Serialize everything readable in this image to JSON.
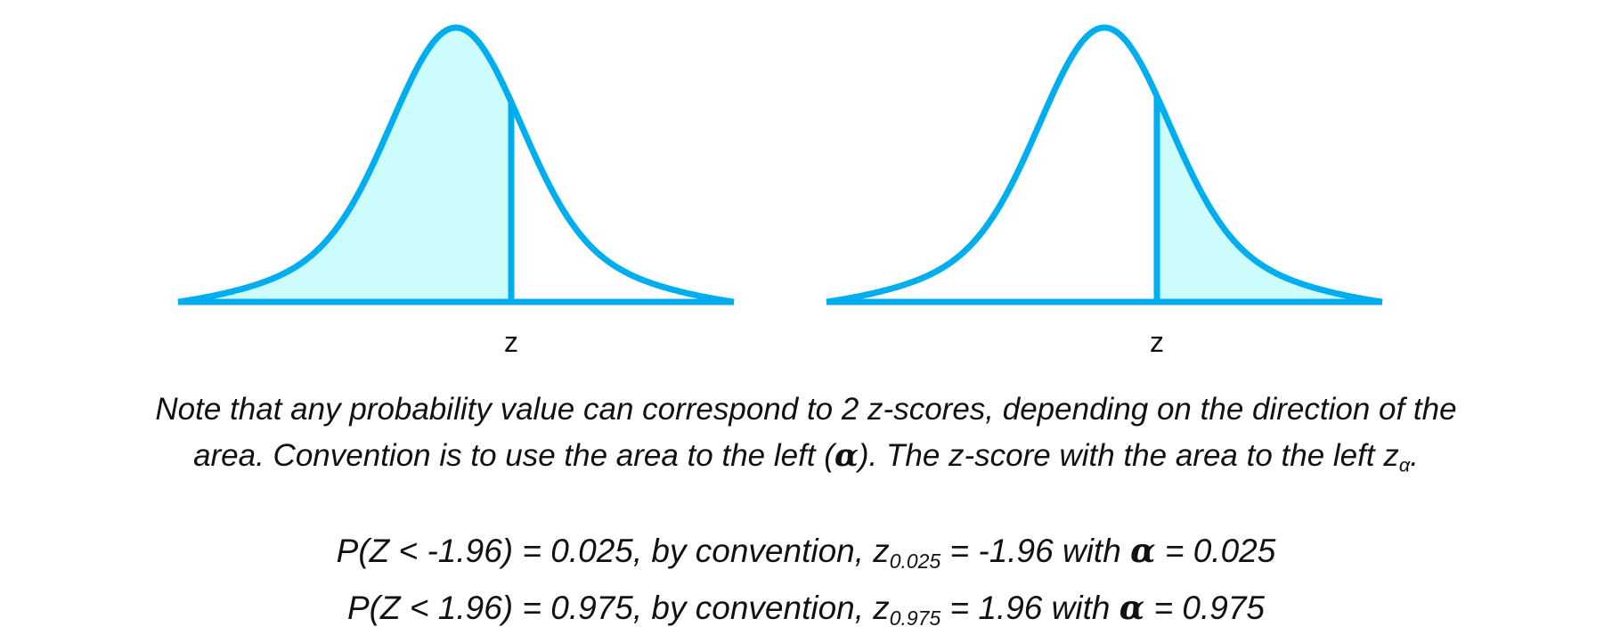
{
  "diagrams": [
    {
      "label": "z"
    },
    {
      "label": "z"
    }
  ],
  "note": {
    "line1": "Note that any probability value can correspond to 2 z-scores, depending on the direction of the",
    "line2_a": "area. Convention is to use the area to the left (",
    "alpha": "α",
    "line2_b": "). The z-score with the area to the left z",
    "line2_sub": "α",
    "line2_c": "."
  },
  "equations": [
    {
      "a": "P(Z < -1.96) = 0.025, by convention, z",
      "sub": "0.025",
      "b": " = -1.96 with ",
      "alpha": "α",
      "c": " = 0.025"
    },
    {
      "a": "P(Z < 1.96) = 0.975, by convention, z",
      "sub": "0.975",
      "b": " = 1.96 with ",
      "alpha": "α",
      "c": " = 0.975"
    }
  ]
}
